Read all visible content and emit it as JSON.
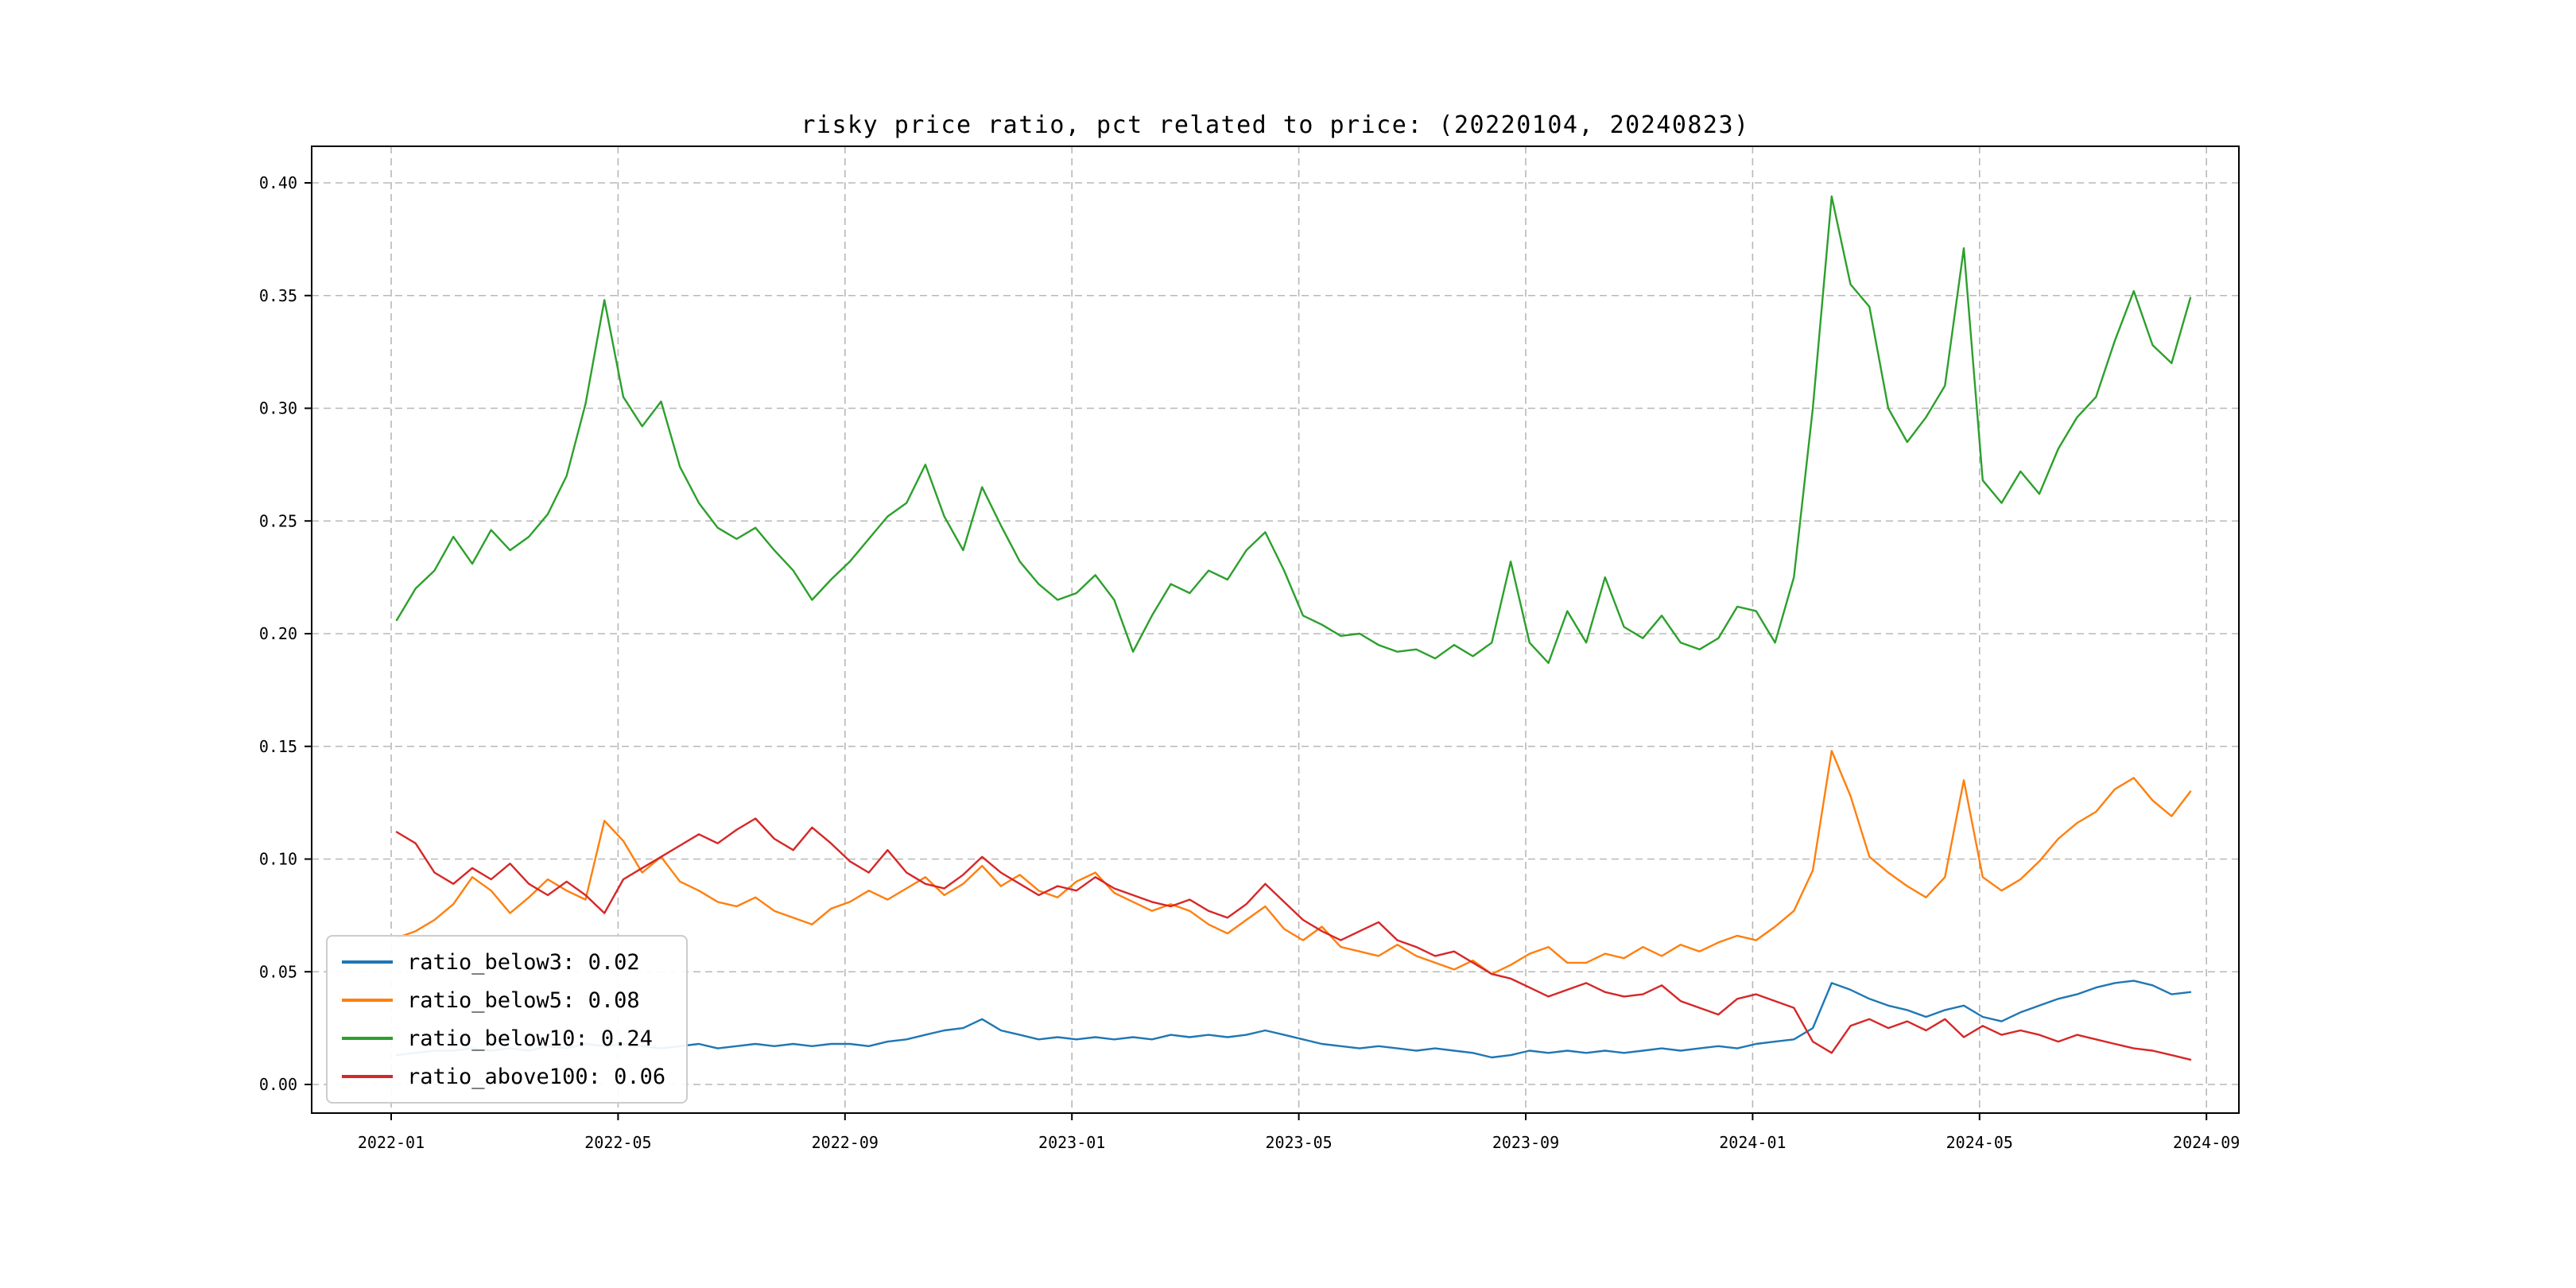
{
  "figure": {
    "background": "#ffffff"
  },
  "chart_data": {
    "type": "line",
    "title": "risky price ratio, pct related to price: (20220104, 20240823)",
    "xlabel": "",
    "ylabel": "",
    "x_range": [
      "2022-01-04",
      "2024-08-23"
    ],
    "ylim": [
      -0.013,
      0.416
    ],
    "grid": true,
    "grid_style": "dashed",
    "legend_position": "lower-left",
    "yticks": [
      0.0,
      0.05,
      0.1,
      0.15,
      0.2,
      0.25,
      0.3,
      0.35,
      0.4
    ],
    "ytick_labels": [
      "0.00",
      "0.05",
      "0.10",
      "0.15",
      "0.20",
      "0.25",
      "0.30",
      "0.35",
      "0.40"
    ],
    "xtick_labels": [
      "2022-01",
      "2022-05",
      "2022-09",
      "2023-01",
      "2023-05",
      "2023-09",
      "2024-01",
      "2024-05",
      "2024-09"
    ],
    "series": [
      {
        "name": "ratio_below3",
        "legend_label": "ratio_below3: 0.02",
        "color": "#1f77b4",
        "values": [
          0.013,
          0.014,
          0.015,
          0.015,
          0.016,
          0.015,
          0.016,
          0.015,
          0.017,
          0.016,
          0.018,
          0.017,
          0.018,
          0.017,
          0.016,
          0.017,
          0.018,
          0.016,
          0.017,
          0.018,
          0.017,
          0.018,
          0.017,
          0.018,
          0.018,
          0.017,
          0.019,
          0.02,
          0.022,
          0.024,
          0.025,
          0.029,
          0.024,
          0.022,
          0.02,
          0.021,
          0.02,
          0.021,
          0.02,
          0.021,
          0.02,
          0.022,
          0.021,
          0.022,
          0.021,
          0.022,
          0.024,
          0.022,
          0.02,
          0.018,
          0.017,
          0.016,
          0.017,
          0.016,
          0.015,
          0.016,
          0.015,
          0.014,
          0.012,
          0.013,
          0.015,
          0.014,
          0.015,
          0.014,
          0.015,
          0.014,
          0.015,
          0.016,
          0.015,
          0.016,
          0.017,
          0.016,
          0.018,
          0.019,
          0.02,
          0.025,
          0.045,
          0.042,
          0.038,
          0.035,
          0.033,
          0.03,
          0.033,
          0.035,
          0.03,
          0.028,
          0.032,
          0.035,
          0.038,
          0.04,
          0.043,
          0.045,
          0.046,
          0.044,
          0.04,
          0.041
        ]
      },
      {
        "name": "ratio_below5",
        "legend_label": "ratio_below5: 0.08",
        "color": "#ff7f0e",
        "values": [
          0.065,
          0.068,
          0.073,
          0.08,
          0.092,
          0.086,
          0.076,
          0.083,
          0.091,
          0.086,
          0.082,
          0.117,
          0.108,
          0.094,
          0.101,
          0.09,
          0.086,
          0.081,
          0.079,
          0.083,
          0.077,
          0.074,
          0.071,
          0.078,
          0.081,
          0.086,
          0.082,
          0.087,
          0.092,
          0.084,
          0.089,
          0.097,
          0.088,
          0.093,
          0.086,
          0.083,
          0.09,
          0.094,
          0.085,
          0.081,
          0.077,
          0.08,
          0.077,
          0.071,
          0.067,
          0.073,
          0.079,
          0.069,
          0.064,
          0.07,
          0.061,
          0.059,
          0.057,
          0.062,
          0.057,
          0.054,
          0.051,
          0.055,
          0.049,
          0.053,
          0.058,
          0.061,
          0.054,
          0.054,
          0.058,
          0.056,
          0.061,
          0.057,
          0.062,
          0.059,
          0.063,
          0.066,
          0.064,
          0.07,
          0.077,
          0.095,
          0.148,
          0.128,
          0.101,
          0.094,
          0.088,
          0.083,
          0.092,
          0.135,
          0.092,
          0.086,
          0.091,
          0.099,
          0.109,
          0.116,
          0.121,
          0.131,
          0.136,
          0.126,
          0.119,
          0.13
        ]
      },
      {
        "name": "ratio_below10",
        "legend_label": "ratio_below10: 0.24",
        "color": "#2ca02c",
        "values": [
          0.206,
          0.22,
          0.228,
          0.243,
          0.231,
          0.246,
          0.237,
          0.243,
          0.253,
          0.27,
          0.302,
          0.348,
          0.305,
          0.292,
          0.303,
          0.274,
          0.258,
          0.247,
          0.242,
          0.247,
          0.237,
          0.228,
          0.215,
          0.224,
          0.232,
          0.242,
          0.252,
          0.258,
          0.275,
          0.252,
          0.237,
          0.265,
          0.248,
          0.232,
          0.222,
          0.215,
          0.218,
          0.226,
          0.215,
          0.192,
          0.208,
          0.222,
          0.218,
          0.228,
          0.224,
          0.237,
          0.245,
          0.228,
          0.208,
          0.204,
          0.199,
          0.2,
          0.195,
          0.192,
          0.193,
          0.189,
          0.195,
          0.19,
          0.196,
          0.232,
          0.196,
          0.187,
          0.21,
          0.196,
          0.225,
          0.203,
          0.198,
          0.208,
          0.196,
          0.193,
          0.198,
          0.212,
          0.21,
          0.196,
          0.225,
          0.3,
          0.394,
          0.355,
          0.345,
          0.3,
          0.285,
          0.296,
          0.31,
          0.371,
          0.268,
          0.258,
          0.272,
          0.262,
          0.282,
          0.296,
          0.305,
          0.33,
          0.352,
          0.328,
          0.32,
          0.349
        ]
      },
      {
        "name": "ratio_above100",
        "legend_label": "ratio_above100: 0.06",
        "color": "#d62728",
        "values": [
          0.112,
          0.107,
          0.094,
          0.089,
          0.096,
          0.091,
          0.098,
          0.089,
          0.084,
          0.09,
          0.084,
          0.076,
          0.091,
          0.096,
          0.101,
          0.106,
          0.111,
          0.107,
          0.113,
          0.118,
          0.109,
          0.104,
          0.114,
          0.107,
          0.099,
          0.094,
          0.104,
          0.094,
          0.089,
          0.087,
          0.093,
          0.101,
          0.094,
          0.089,
          0.084,
          0.088,
          0.086,
          0.092,
          0.087,
          0.084,
          0.081,
          0.079,
          0.082,
          0.077,
          0.074,
          0.08,
          0.089,
          0.081,
          0.073,
          0.068,
          0.064,
          0.068,
          0.072,
          0.064,
          0.061,
          0.057,
          0.059,
          0.054,
          0.049,
          0.047,
          0.043,
          0.039,
          0.042,
          0.045,
          0.041,
          0.039,
          0.04,
          0.044,
          0.037,
          0.034,
          0.031,
          0.038,
          0.04,
          0.037,
          0.034,
          0.019,
          0.014,
          0.026,
          0.029,
          0.025,
          0.028,
          0.024,
          0.029,
          0.021,
          0.026,
          0.022,
          0.024,
          0.022,
          0.019,
          0.022,
          0.02,
          0.018,
          0.016,
          0.015,
          0.013,
          0.011
        ]
      }
    ]
  }
}
